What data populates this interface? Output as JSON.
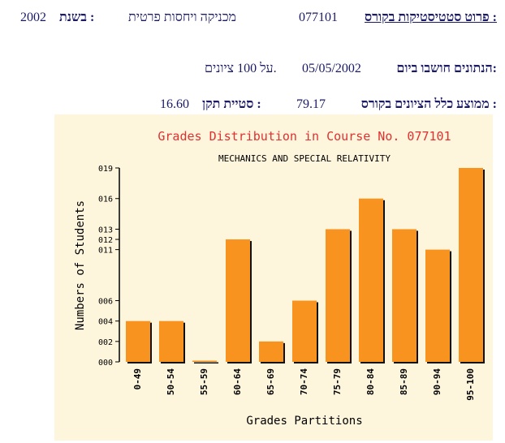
{
  "header": {
    "course_label": "פרוט סטטיסטיקות בקורס :",
    "course_number": "077101",
    "course_name": "מכניקה ויחסות פרטית",
    "year_label": "בשנת :",
    "year": "2002"
  },
  "computed": {
    "label": "הנתונים חושבו ביום:",
    "date": "05/05/2002",
    "count_text": "על 100 ציונים."
  },
  "stats": {
    "mean_label": "ממוצע כלל הציונים בקורס :",
    "mean": "79.17",
    "std_label": "סטיית תקן :",
    "std": "16.60"
  },
  "colors": {
    "panel_bg": "#fdf5dc",
    "bar": "#f7931e",
    "bar_shadow": "#111111",
    "title": "#e03030",
    "header_text": "#1a1a66"
  },
  "chart_data": {
    "type": "bar",
    "title": "Grades Distribution in Course No. 077101",
    "subtitle": "MECHANICS AND SPECIAL RELATIVITY",
    "xlabel": "Grades Partitions",
    "ylabel": "Numbers of Students",
    "categories": [
      "0-49",
      "50-54",
      "55-59",
      "60-64",
      "65-69",
      "70-74",
      "75-79",
      "80-84",
      "85-89",
      "90-94",
      "95-100"
    ],
    "values": [
      4,
      4,
      0,
      12,
      2,
      6,
      13,
      16,
      13,
      11,
      19
    ],
    "yticks": [
      0,
      2,
      4,
      6,
      11,
      12,
      13,
      16,
      19
    ],
    "ytick_labels": [
      "000",
      "002",
      "004",
      "006",
      "011",
      "012",
      "013",
      "016",
      "019"
    ],
    "ylim": [
      0,
      19
    ],
    "grid": false
  }
}
